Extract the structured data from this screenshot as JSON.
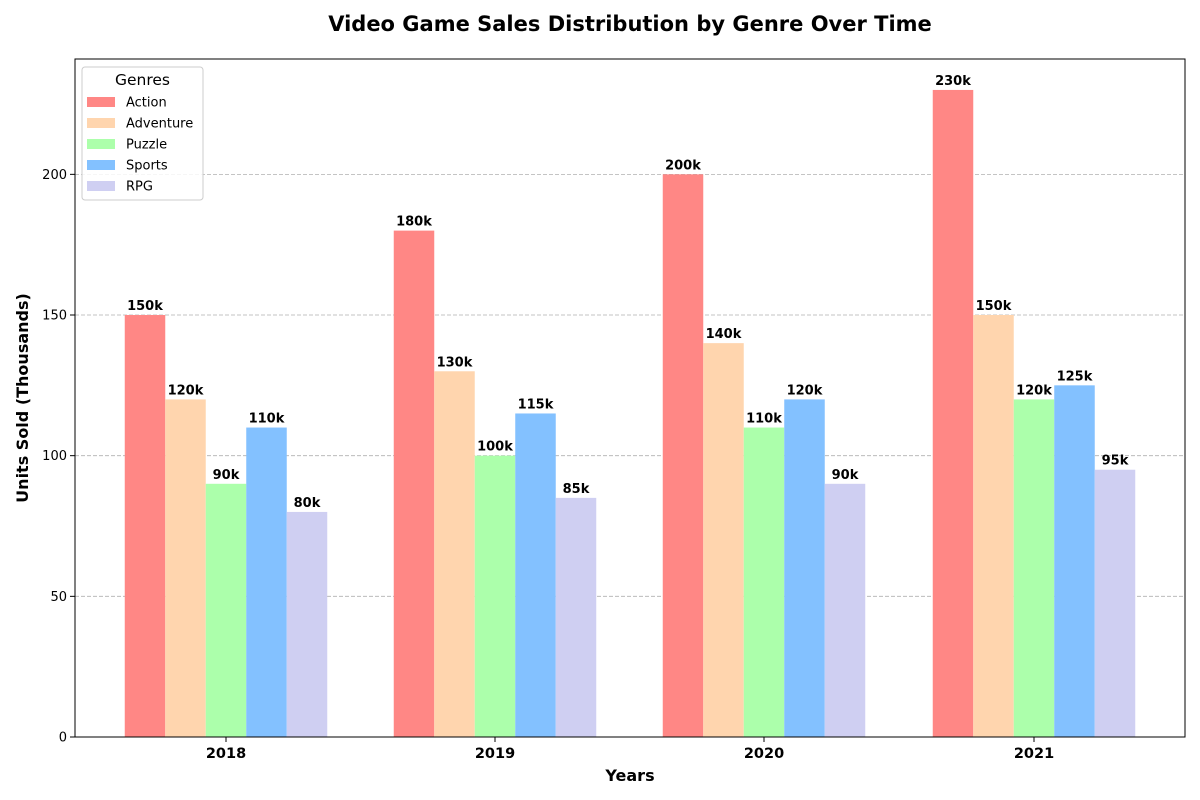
{
  "chart_data": {
    "type": "bar",
    "title": "Video Game Sales Distribution by Genre Over Time",
    "xlabel": "Years",
    "ylabel": "Units Sold (Thousands)",
    "categories": [
      "2018",
      "2019",
      "2020",
      "2021"
    ],
    "ylim": [
      0,
      241
    ],
    "yticks": [
      0,
      50,
      100,
      150,
      200
    ],
    "grid": "horizontal dashed",
    "legend": {
      "title": "Genres",
      "placement": "top-left"
    },
    "series": [
      {
        "name": "Action",
        "color": "#ff8785",
        "values": [
          150,
          180,
          200,
          230
        ],
        "labels": [
          "150k",
          "180k",
          "200k",
          "230k"
        ]
      },
      {
        "name": "Adventure",
        "color": "#ffd5ae",
        "values": [
          120,
          130,
          140,
          150
        ],
        "labels": [
          "120k",
          "130k",
          "140k",
          "150k"
        ]
      },
      {
        "name": "Puzzle",
        "color": "#acffab",
        "values": [
          90,
          100,
          110,
          120
        ],
        "labels": [
          "90k",
          "100k",
          "110k",
          "120k"
        ]
      },
      {
        "name": "Sports",
        "color": "#83c1ff",
        "values": [
          110,
          115,
          120,
          125
        ],
        "labels": [
          "110k",
          "115k",
          "120k",
          "125k"
        ]
      },
      {
        "name": "RPG",
        "color": "#cfcff2",
        "values": [
          80,
          85,
          90,
          95
        ],
        "labels": [
          "80k",
          "85k",
          "90k",
          "95k"
        ]
      }
    ]
  }
}
